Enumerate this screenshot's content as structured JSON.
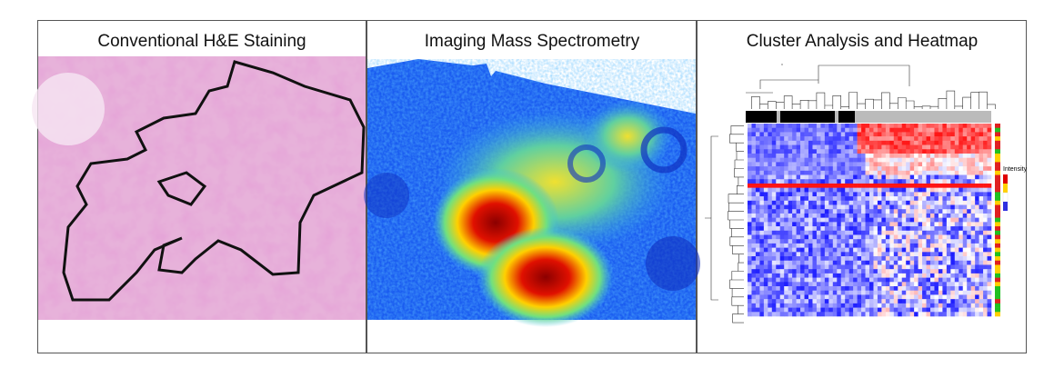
{
  "panels": [
    {
      "title": "Conventional H&E Staining"
    },
    {
      "title": "Imaging Mass Spectrometry"
    },
    {
      "title": "Cluster Analysis and Heatmap",
      "legend_title": "Intensity"
    }
  ]
}
